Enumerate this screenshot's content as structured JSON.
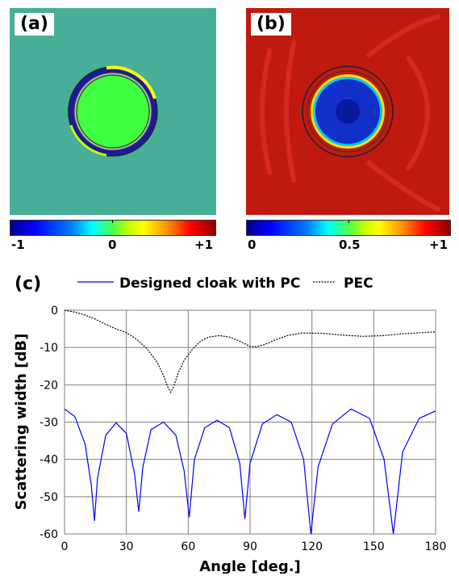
{
  "panels": {
    "a": {
      "label": "(a)",
      "colorbar_ticks": [
        "-1",
        "0",
        "+1"
      ]
    },
    "b": {
      "label": "(b)",
      "colorbar_ticks": [
        "0",
        "0.5",
        "+1"
      ]
    }
  },
  "chart_data": {
    "type": "line",
    "panel_label": "(c)",
    "xlabel": "Angle [deg.]",
    "ylabel": "Scattering width [dB]",
    "xlim": [
      0,
      180
    ],
    "ylim": [
      -60,
      0
    ],
    "xticks": [
      "0",
      "30",
      "60",
      "90",
      "120",
      "150",
      "180"
    ],
    "yticks": [
      "0",
      "-10",
      "-20",
      "-30",
      "-40",
      "-50",
      "-60"
    ],
    "grid": true,
    "legend_position": "top",
    "series": [
      {
        "name": "Designed cloak with PC",
        "color": "#0000ff",
        "style": "solid",
        "x": [
          0,
          5,
          10,
          13,
          14.5,
          16,
          20,
          25,
          30,
          34,
          36,
          38,
          42,
          48,
          54,
          58,
          60.5,
          63,
          68,
          74,
          80,
          85,
          87.5,
          90,
          96,
          103,
          110,
          116,
          119.5,
          123,
          130,
          139,
          148,
          155,
          159.5,
          164,
          172,
          180
        ],
        "y": [
          -26.5,
          -28.5,
          -36,
          -47,
          -56.5,
          -45,
          -33.5,
          -30.2,
          -33,
          -44,
          -54,
          -42,
          -32,
          -30,
          -33.5,
          -43,
          -55.5,
          -40,
          -31.5,
          -29.5,
          -31.5,
          -41,
          -56,
          -41,
          -30.5,
          -28,
          -30,
          -40,
          -60,
          -42,
          -30.5,
          -26.5,
          -29,
          -40,
          -60,
          -38,
          -29,
          -27
        ]
      },
      {
        "name": "PEC",
        "color": "#000000",
        "style": "dashed",
        "x": [
          0,
          5,
          10,
          15,
          20,
          25,
          30,
          35,
          40,
          45,
          48,
          50,
          51.5,
          53,
          55,
          58,
          62,
          66,
          70,
          75,
          80,
          85,
          90,
          93,
          97,
          102,
          108,
          115,
          125,
          135,
          145,
          155,
          165,
          180
        ],
        "y": [
          0,
          -0.5,
          -1.3,
          -2.4,
          -3.8,
          -5,
          -6,
          -7.8,
          -10.3,
          -14,
          -17.5,
          -20.5,
          -22,
          -20.5,
          -17,
          -13.5,
          -10.5,
          -8.3,
          -7.2,
          -6.8,
          -7.2,
          -8.3,
          -9.7,
          -9.8,
          -9.2,
          -8,
          -6.8,
          -6.1,
          -6.2,
          -6.7,
          -7,
          -6.8,
          -6.3,
          -5.8
        ]
      }
    ]
  }
}
